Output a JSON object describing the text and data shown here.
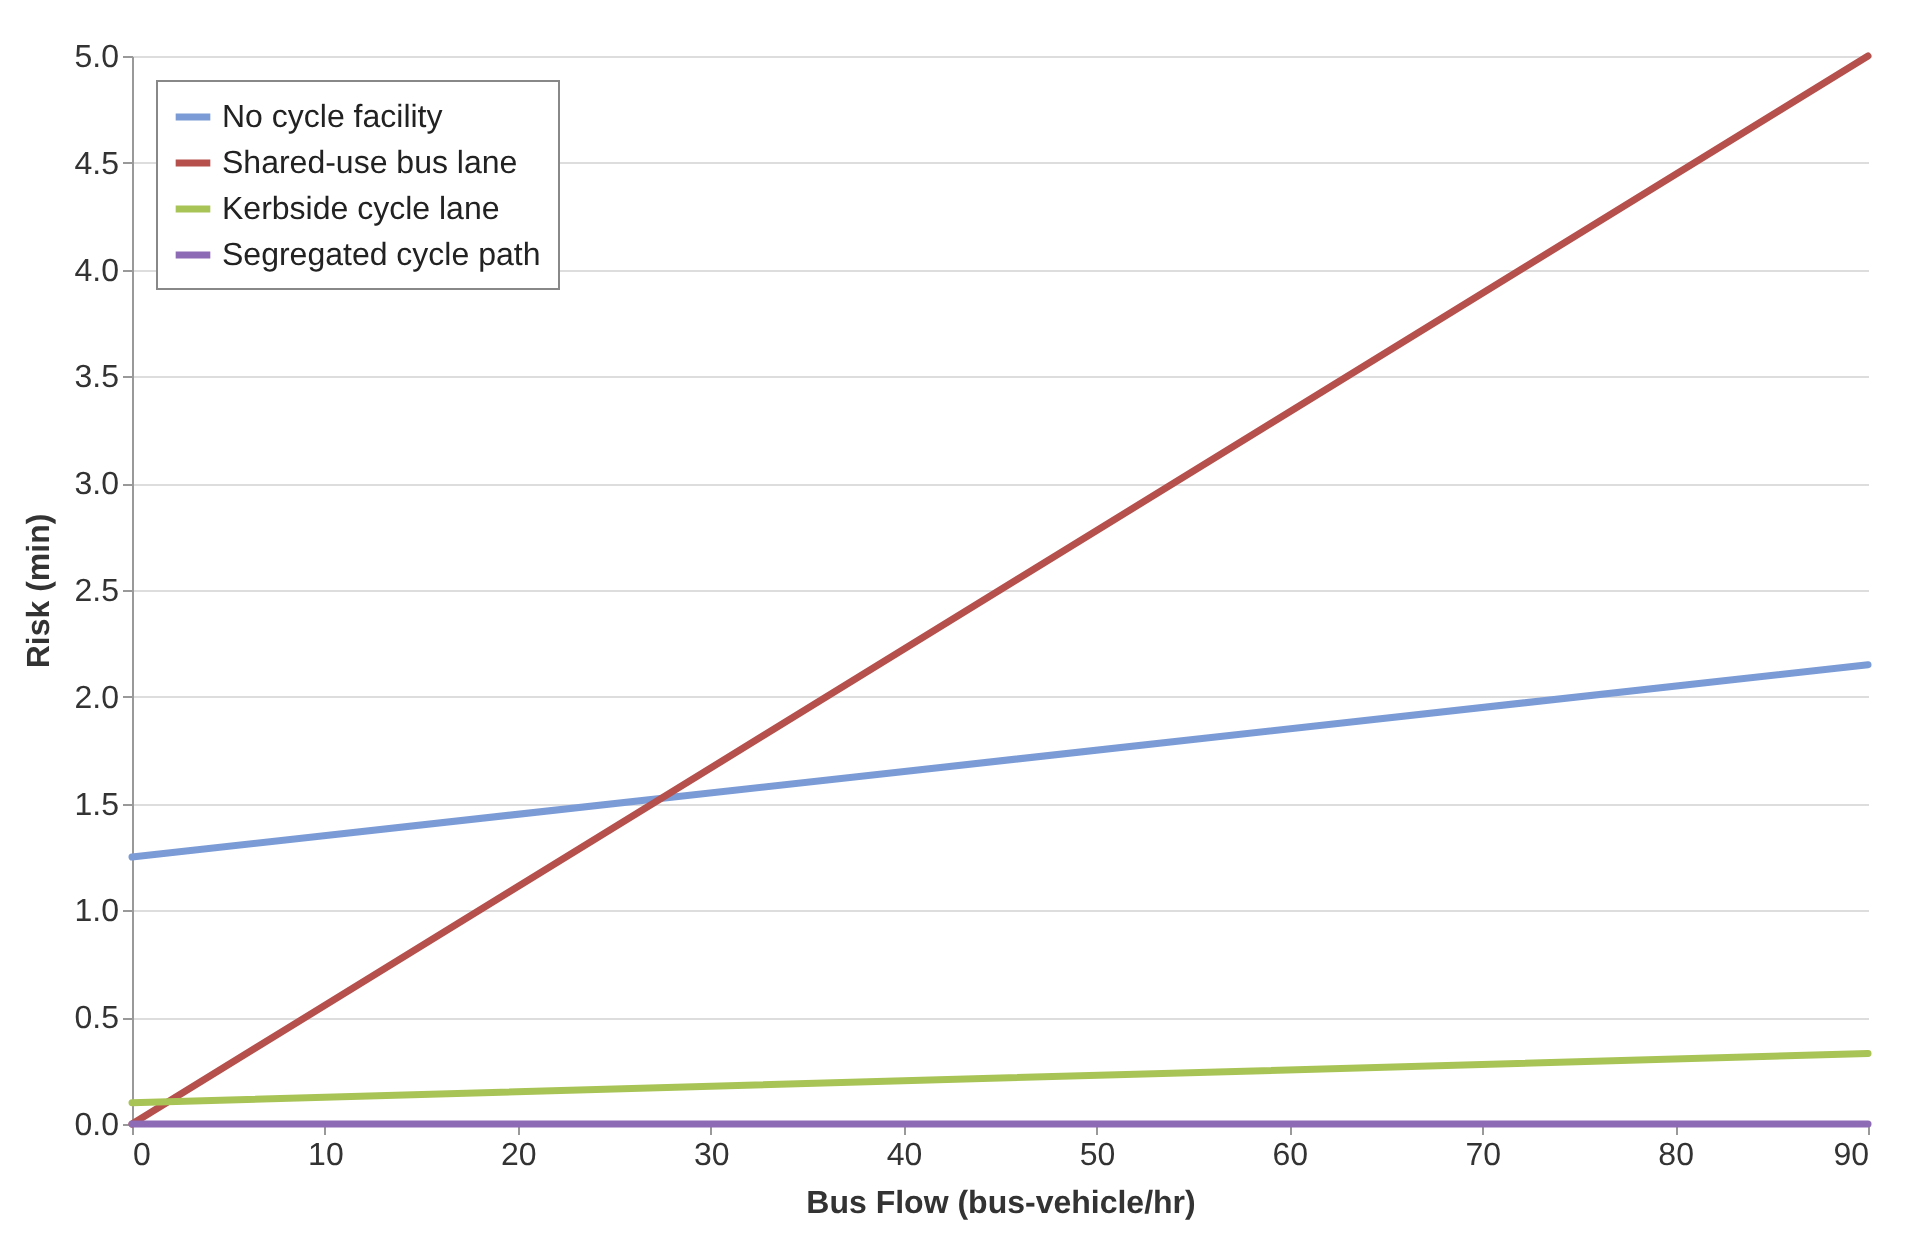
{
  "chart_data": {
    "type": "line",
    "xlabel": "Bus Flow (bus-vehicle/hr)",
    "ylabel": "Risk (min)",
    "x": [
      0,
      90
    ],
    "series": [
      {
        "name": "No cycle facility",
        "color": "#7b9bd6",
        "values": [
          1.25,
          2.15
        ]
      },
      {
        "name": "Shared-use bus lane",
        "color": "#b5504c",
        "values": [
          0,
          5.0
        ]
      },
      {
        "name": "Kerbside cycle lane",
        "color": "#a9c456",
        "values": [
          0.1,
          0.33
        ]
      },
      {
        "name": "Segregated cycle path",
        "color": "#8d6bb5",
        "values": [
          0,
          0
        ]
      }
    ],
    "xlim": [
      0,
      90
    ],
    "xticks": [
      0,
      10,
      20,
      30,
      40,
      50,
      60,
      70,
      80,
      90
    ],
    "ylim": [
      0,
      5
    ],
    "yticks": [
      {
        "value": 0,
        "label": "0.0"
      },
      {
        "value": 0.5,
        "label": "0.5"
      },
      {
        "value": 1,
        "label": "1.0"
      },
      {
        "value": 1.5,
        "label": "1.5"
      },
      {
        "value": 2,
        "label": "2.0"
      },
      {
        "value": 2.5,
        "label": "2.5"
      },
      {
        "value": 3,
        "label": "3.0"
      },
      {
        "value": 3.5,
        "label": "3.5"
      },
      {
        "value": 4,
        "label": "4.0"
      },
      {
        "value": 4.5,
        "label": "4.5"
      },
      {
        "value": 5,
        "label": "5.0"
      }
    ],
    "grid": "y",
    "legend": "top left",
    "marker": "none",
    "line_style": "solid"
  }
}
